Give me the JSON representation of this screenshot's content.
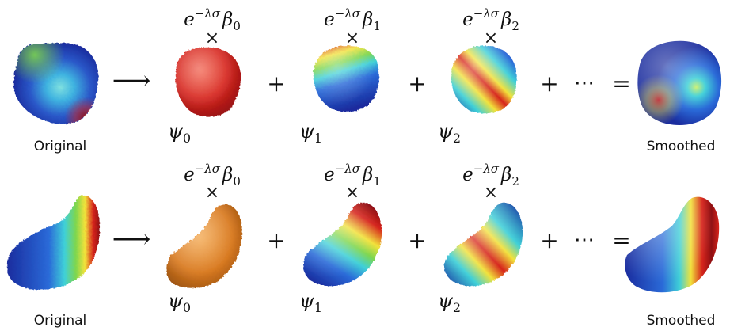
{
  "rows": [
    {
      "id": "row-top",
      "left_label": "Original",
      "right_label": "Smoothed",
      "shape": "blob",
      "operators": {
        "arrow": "⟶",
        "plus": "+",
        "ellipsis": "⋯",
        "equals": "="
      },
      "terms": [
        {
          "coef_base": "e",
          "coef_exp": "−λσ",
          "coef_beta": "β",
          "coef_sub": "0",
          "times": "×",
          "basis": "ψ",
          "basis_sub": "0",
          "style": "red"
        },
        {
          "coef_base": "e",
          "coef_exp": "−λσ",
          "coef_beta": "β",
          "coef_sub": "1",
          "times": "×",
          "basis": "ψ",
          "basis_sub": "1",
          "style": "gradient-1"
        },
        {
          "coef_base": "e",
          "coef_exp": "−λσ",
          "coef_beta": "β",
          "coef_sub": "2",
          "times": "×",
          "basis": "ψ",
          "basis_sub": "2",
          "style": "gradient-2"
        }
      ]
    },
    {
      "id": "row-bottom",
      "left_label": "Original",
      "right_label": "Smoothed",
      "shape": "crescent",
      "operators": {
        "arrow": "⟶",
        "plus": "+",
        "ellipsis": "⋯",
        "equals": "="
      },
      "terms": [
        {
          "coef_base": "e",
          "coef_exp": "−λσ",
          "coef_beta": "β",
          "coef_sub": "0",
          "times": "×",
          "basis": "ψ",
          "basis_sub": "0",
          "style": "orange"
        },
        {
          "coef_base": "e",
          "coef_exp": "−λσ",
          "coef_beta": "β",
          "coef_sub": "1",
          "times": "×",
          "basis": "ψ",
          "basis_sub": "1",
          "style": "gradient-1"
        },
        {
          "coef_base": "e",
          "coef_exp": "−λσ",
          "coef_beta": "β",
          "coef_sub": "2",
          "times": "×",
          "basis": "ψ",
          "basis_sub": "2",
          "style": "gradient-2"
        }
      ]
    }
  ],
  "colors": {
    "blue": "#1f3fbf",
    "cyan": "#3fd0d8",
    "green": "#7dd64f",
    "yellow": "#f2e23a",
    "red": "#d6241c",
    "dark_red": "#8e0f12",
    "orange": "#d8781e",
    "text": "#111111"
  }
}
